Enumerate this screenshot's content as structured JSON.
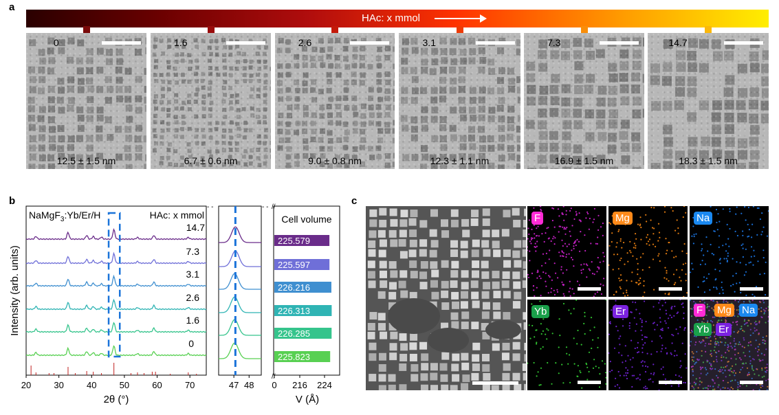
{
  "panels": {
    "a": "a",
    "b": "b",
    "c": "c"
  },
  "panel_a": {
    "gradient_label": "HAc: x mmol",
    "gradient_colors": [
      "#2a0000",
      "#8b0000",
      "#ff3300",
      "#ff9900",
      "#ffee00"
    ],
    "images": [
      {
        "amount": "0",
        "size": "12.5 ± 1.5 nm",
        "tick_color": "#7a0a0a"
      },
      {
        "amount": "1.6",
        "size": "6.7 ± 0.6 nm",
        "tick_color": "#9a0c0c"
      },
      {
        "amount": "2.6",
        "size": "9.0 ± 0.8 nm",
        "tick_color": "#c41a0a"
      },
      {
        "amount": "3.1",
        "size": "12.3 ± 1.1 nm",
        "tick_color": "#ee3b06"
      },
      {
        "amount": "7.3",
        "size": "16.9 ± 1.5 nm",
        "tick_color": "#f98e0a"
      },
      {
        "amount": "14.7",
        "size": "18.3 ± 1.5 nm",
        "tick_color": "#fbb80c"
      }
    ]
  },
  "panel_b": {
    "compound": "NaMgF",
    "compound_sub": "3",
    "compound_rest": ":Yb/Er/H",
    "hac_label": "HAc: x mmol",
    "ylabel": "Intensity (arb. units)",
    "xlabel_main": "2θ (°)",
    "xlabel_zoom": "",
    "xlabel_volume": "V (Å)",
    "cell_volume_title": "Cell volume",
    "main_xticks": [
      "20",
      "30",
      "40",
      "50",
      "60",
      "70"
    ],
    "zoom_xticks": [
      "47",
      "48"
    ],
    "volume_xticks": [
      "0",
      "216",
      "224"
    ],
    "series": [
      {
        "amount": "14.7",
        "volume": "225.579",
        "color": "#6a2c8a",
        "bar_color": "#6a2c8a"
      },
      {
        "amount": "7.3",
        "volume": "225.597",
        "color": "#6f6fd8",
        "bar_color": "#6f6fd8"
      },
      {
        "amount": "3.1",
        "volume": "226.216",
        "color": "#3f8fd0",
        "bar_color": "#3f8fd0"
      },
      {
        "amount": "2.6",
        "volume": "226.313",
        "color": "#2fb4b4",
        "bar_color": "#2fb4b4"
      },
      {
        "amount": "1.6",
        "volume": "226.285",
        "color": "#35c48c",
        "bar_color": "#35c48c"
      },
      {
        "amount": "0",
        "volume": "225.823",
        "color": "#58d052",
        "bar_color": "#58d052"
      }
    ],
    "reference_color": "#c0201e",
    "dash_color": "#1a73d9"
  },
  "panel_c": {
    "maps": [
      {
        "element": "F",
        "dot_color": "#c020c0",
        "tag_color": "#ff2bd6"
      },
      {
        "element": "Mg",
        "dot_color": "#e07a10",
        "tag_color": "#ff8a1a"
      },
      {
        "element": "Na",
        "dot_color": "#1a70d8",
        "tag_color": "#1a88f0"
      },
      {
        "element": "Yb",
        "dot_color": "#30c030",
        "tag_color": "#1aa04a"
      },
      {
        "element": "Er",
        "dot_color": "#6a20c8",
        "tag_color": "#7b22e0"
      }
    ],
    "overlay_tags": [
      "F",
      "Mg",
      "Na",
      "Yb",
      "Er"
    ]
  },
  "chart_data": {
    "type": "line",
    "title": "",
    "xlabel": "2θ (°)",
    "ylabel": "Intensity (arb. units)",
    "xlim": [
      20,
      75
    ],
    "series": [
      {
        "name": "14.7",
        "cell_volume": 225.579
      },
      {
        "name": "7.3",
        "cell_volume": 225.597
      },
      {
        "name": "3.1",
        "cell_volume": 226.216
      },
      {
        "name": "2.6",
        "cell_volume": 226.313
      },
      {
        "name": "1.6",
        "cell_volume": 226.285
      },
      {
        "name": "0",
        "cell_volume": 225.823
      }
    ],
    "peaks_2theta": [
      23,
      32.8,
      38.5,
      40.5,
      43,
      46.8,
      54,
      59,
      69.5
    ],
    "volume_xlim": [
      0,
      228
    ]
  }
}
